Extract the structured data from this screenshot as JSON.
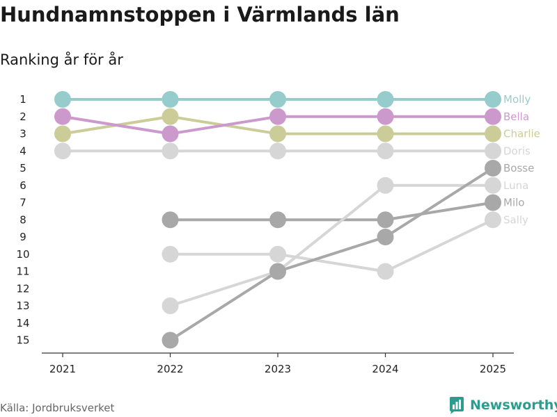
{
  "header": {
    "title": "Hundnamnstoppen i Värmlands län",
    "subtitle": "Ranking år för år"
  },
  "footer": {
    "source": "Källa: Jordbruksverket",
    "brand": "Newsworthy"
  },
  "colors": {
    "Molly": "#97cccc",
    "Bella": "#cc99cc",
    "Charlie": "#cccc99",
    "Doris": "#d6d6d6",
    "Bosse": "#a8a8a8",
    "Luna": "#d6d6d6",
    "Milo": "#a8a8a8",
    "Sally": "#d6d6d6",
    "brand": "#2a9d8f"
  },
  "chart_data": {
    "type": "line",
    "title": "Hundnamnstoppen i Värmlands län",
    "subtitle": "Ranking år för år",
    "x": [
      "2021",
      "2022",
      "2023",
      "2024",
      "2025"
    ],
    "y_ticks": [
      "1",
      "2",
      "3",
      "4",
      "5",
      "6",
      "7",
      "8",
      "9",
      "10",
      "11",
      "12",
      "13",
      "14",
      "15"
    ],
    "ylim": [
      1,
      15
    ],
    "y_inverted": true,
    "series": [
      {
        "name": "Molly",
        "values": [
          1,
          1,
          1,
          1,
          1
        ]
      },
      {
        "name": "Bella",
        "values": [
          2,
          3,
          2,
          2,
          2
        ]
      },
      {
        "name": "Charlie",
        "values": [
          3,
          2,
          3,
          3,
          3
        ]
      },
      {
        "name": "Doris",
        "values": [
          4,
          4,
          4,
          4,
          4
        ]
      },
      {
        "name": "Bosse",
        "values": [
          null,
          15,
          11,
          9,
          5
        ]
      },
      {
        "name": "Luna",
        "values": [
          null,
          13,
          11,
          6,
          6
        ]
      },
      {
        "name": "Milo",
        "values": [
          null,
          8,
          8,
          8,
          7
        ]
      },
      {
        "name": "Sally",
        "values": [
          null,
          10,
          10,
          11,
          8
        ]
      }
    ]
  }
}
